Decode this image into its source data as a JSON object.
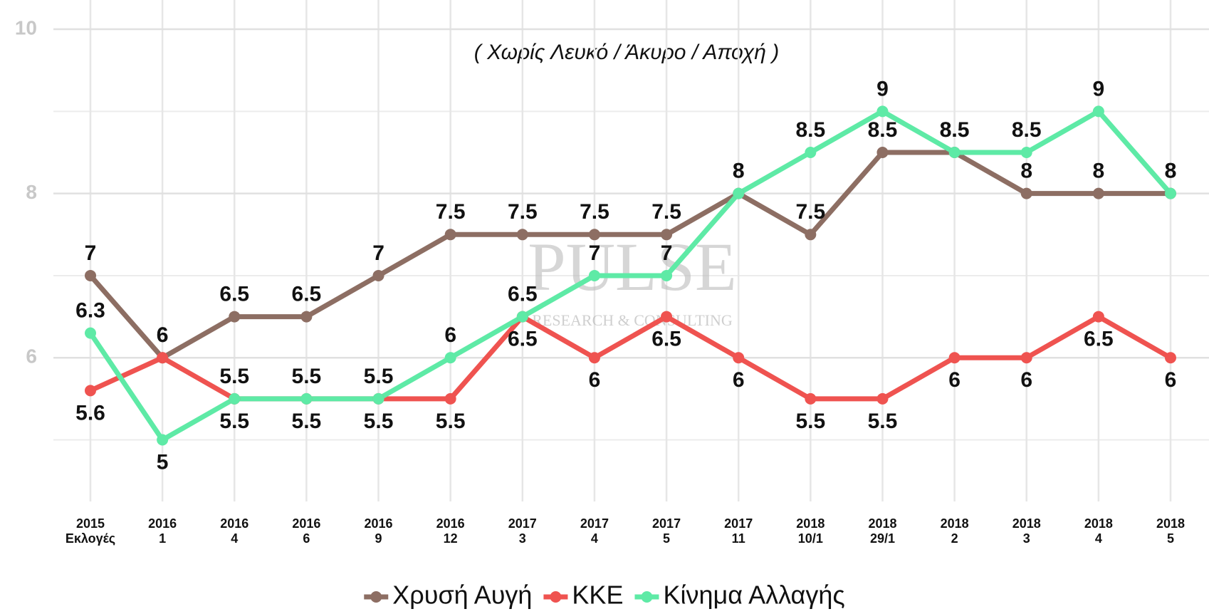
{
  "chart_data": {
    "type": "line",
    "subtitle": "( Χωρίς Λευκό / Άκυρο / Αποχή )",
    "watermark": [
      "PULSE",
      "RESEARCH & CONSULTING"
    ],
    "categories": [
      [
        "2015",
        "Εκλογές"
      ],
      [
        "2016",
        "1"
      ],
      [
        "2016",
        "4"
      ],
      [
        "2016",
        "6"
      ],
      [
        "2016",
        "9"
      ],
      [
        "2016",
        "12"
      ],
      [
        "2017",
        "3"
      ],
      [
        "2017",
        "4"
      ],
      [
        "2017",
        "5"
      ],
      [
        "2017",
        "11"
      ],
      [
        "2018",
        "10/1"
      ],
      [
        "2018",
        "29/1"
      ],
      [
        "2018",
        "2"
      ],
      [
        "2018",
        "3"
      ],
      [
        "2018",
        "4"
      ],
      [
        "2018",
        "5"
      ]
    ],
    "series": [
      {
        "name": "Χρυσή Αυγή",
        "color": "#8d6e63",
        "values": [
          7,
          6,
          6.5,
          6.5,
          7,
          7.5,
          7.5,
          7.5,
          7.5,
          8,
          7.5,
          8.5,
          8.5,
          8,
          8,
          8
        ]
      },
      {
        "name": "ΚΚΕ",
        "color": "#ef5350",
        "values": [
          5.6,
          6,
          5.5,
          5.5,
          5.5,
          5.5,
          6.5,
          6,
          6.5,
          6,
          5.5,
          5.5,
          6,
          6,
          6.5,
          6
        ]
      },
      {
        "name": "Κίνημα Αλλαγής",
        "color": "#5eeaa6",
        "values": [
          6.3,
          5,
          5.5,
          5.5,
          5.5,
          6,
          6.5,
          7,
          7,
          8,
          8.5,
          9,
          8.5,
          8.5,
          9,
          8
        ]
      }
    ],
    "ylim": [
      4.25,
      10.2
    ],
    "yticks": [
      6,
      8,
      10
    ],
    "minor_yticks": [
      5,
      7,
      9
    ],
    "grid": true,
    "legend": "bottom"
  }
}
